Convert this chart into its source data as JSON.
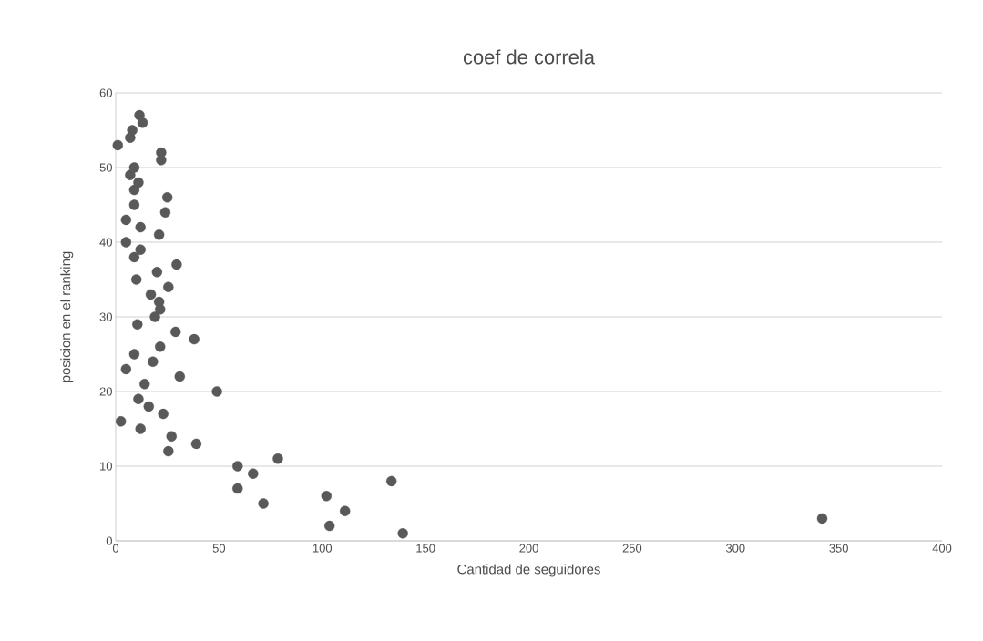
{
  "chart_data": {
    "type": "scatter",
    "title": "coef de correla",
    "xlabel": "Cantidad de seguidores",
    "ylabel": "posicion en el ranking",
    "x": [
      1,
      7,
      8,
      11.5,
      13,
      22,
      22,
      9,
      7,
      11,
      9,
      25,
      9,
      24,
      5,
      12,
      21,
      5,
      12,
      9,
      29.5,
      20,
      10,
      25.5,
      17,
      21,
      21.5,
      19,
      10.5,
      29,
      38,
      21.5,
      9,
      18,
      5,
      31,
      14,
      49,
      11,
      16,
      23,
      2.5,
      27,
      12,
      25.5,
      39,
      78.5,
      59,
      66.5,
      133.5,
      59,
      102,
      71.5,
      111,
      342,
      103.5,
      139
    ],
    "values": [
      53,
      54,
      55,
      57,
      56,
      52,
      51,
      50,
      49,
      48,
      47,
      46,
      45,
      44,
      43,
      42,
      41,
      40,
      39,
      38,
      37,
      36,
      35,
      34,
      33,
      32,
      31,
      30,
      29,
      28,
      27,
      26,
      25,
      24,
      23,
      22,
      21,
      20,
      19,
      18,
      17,
      16,
      14,
      15,
      12,
      13,
      11,
      10,
      9,
      8,
      7,
      6,
      5,
      4,
      3,
      2,
      1
    ],
    "color": "#595959",
    "grid": "y",
    "xlim": [
      0,
      400
    ],
    "xticks": [
      0,
      50,
      100,
      150,
      200,
      250,
      300,
      350,
      400
    ],
    "ylim": [
      0,
      60
    ],
    "yticks": [
      0,
      10,
      20,
      30,
      40,
      50,
      60
    ]
  }
}
